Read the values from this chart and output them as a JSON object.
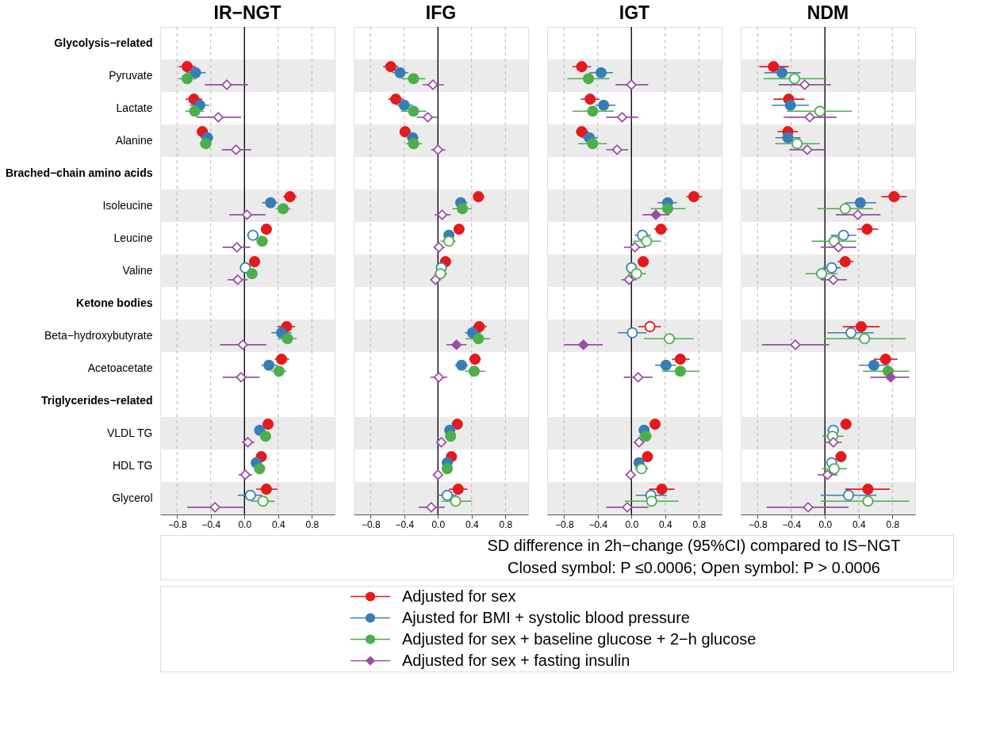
{
  "chart_data": [
    {
      "type": "scatter",
      "title": "IR−NGT",
      "orientation": "horizontal",
      "annotations": [
        "SD difference in 2h−change (95%CI) compared to IS−NGT",
        "Closed symbol: P  ≤0.0006; Open symbol: P > 0.0006"
      ],
      "categories": [
        "Glycolysis−related",
        "Pyruvate",
        "Lactate",
        "Alanine",
        "Brached−chain amino acids",
        "Isoleucine",
        "Leucine",
        "Valine",
        "Ketone bodies",
        "Beta−hydroxybutyrate",
        "Acetoacetate",
        "Triglycerides−related",
        "VLDL TG",
        "HDL TG",
        "Glycerol"
      ],
      "xlim": [
        -1.0,
        1.07
      ],
      "xticks": [
        {
          "value": -0.8,
          "label": "−0.8"
        },
        {
          "value": -0.4,
          "label": "−0.4"
        },
        {
          "value": 0,
          "label": "0.0"
        },
        {
          "value": 0.4,
          "label": "0.4"
        },
        {
          "value": 0.8,
          "label": "0.8"
        }
      ],
      "grid": "x",
      "legend": "bottom",
      "ref_lines": [
        {
          "axis": "x",
          "value": 0,
          "color": "#000000"
        }
      ],
      "bands": [
        {
          "axis": "y",
          "from": "Pyruvate",
          "to": "Pyruvate",
          "color": "#ebebeb"
        },
        {
          "axis": "y",
          "from": "Alanine",
          "to": "Alanine",
          "color": "#ebebeb"
        },
        {
          "axis": "y",
          "from": "Isoleucine",
          "to": "Isoleucine",
          "color": "#ebebeb"
        },
        {
          "axis": "y",
          "from": "Valine",
          "to": "Valine",
          "color": "#ebebeb"
        },
        {
          "axis": "y",
          "from": "Beta−hydroxybutyrate",
          "to": "Beta−hydroxybutyrate",
          "color": "#ebebeb"
        },
        {
          "axis": "y",
          "from": "VLDL TG",
          "to": "VLDL TG",
          "color": "#ebebeb"
        },
        {
          "axis": "y",
          "from": "Glycerol",
          "to": "Glycerol",
          "color": "#ebebeb"
        }
      ],
      "series": [
        {
          "name": "Adjusted for sex",
          "color": "#e41a1c",
          "marker": "circle",
          "values": [
            null,
            -0.68,
            -0.6,
            -0.5,
            null,
            0.54,
            0.26,
            0.12,
            null,
            0.5,
            0.44,
            null,
            0.28,
            0.2,
            0.26
          ],
          "errors": [
            null,
            [
              -0.78,
              -0.58
            ],
            [
              -0.7,
              -0.5
            ],
            [
              -0.56,
              -0.44
            ],
            null,
            [
              0.46,
              0.62
            ],
            [
              0.2,
              0.32
            ],
            [
              0.09,
              0.15
            ],
            null,
            [
              0.39,
              0.6
            ],
            [
              0.36,
              0.53
            ],
            null,
            [
              0.25,
              0.31
            ],
            [
              0.17,
              0.23
            ],
            [
              0.14,
              0.39
            ]
          ],
          "colors": [
            null,
            "#e41a1c",
            "#e41a1c",
            "#e41a1c",
            null,
            "#e41a1c",
            "#e41a1c",
            "#e41a1c",
            null,
            "#e41a1c",
            "#e41a1c",
            null,
            "#e41a1c",
            "#e41a1c",
            "#e41a1c"
          ]
        },
        {
          "name": "Ajusted for BMI + systolic blood pressure",
          "color": "#377eb8",
          "marker": "circle",
          "values": [
            null,
            -0.58,
            -0.53,
            -0.44,
            null,
            0.31,
            0.1,
            0.01,
            null,
            0.44,
            0.29,
            null,
            0.18,
            0.14,
            0.07
          ],
          "errors": [
            null,
            [
              -0.69,
              -0.46
            ],
            [
              -0.65,
              -0.42
            ],
            [
              -0.52,
              -0.37
            ],
            null,
            [
              0.21,
              0.4
            ],
            [
              0.03,
              0.17
            ],
            [
              -0.03,
              0.05
            ],
            null,
            [
              0.32,
              0.56
            ],
            [
              0.2,
              0.39
            ],
            null,
            [
              0.15,
              0.21
            ],
            [
              0.11,
              0.17
            ],
            [
              -0.08,
              0.21
            ]
          ],
          "colors": [
            null,
            "#377eb8",
            "#377eb8",
            "#377eb8",
            null,
            "#377eb8",
            "#ffffff",
            "#ffffff",
            null,
            "#377eb8",
            "#377eb8",
            null,
            "#377eb8",
            "#377eb8",
            "#ffffff"
          ]
        },
        {
          "name": "Adjusted for sex + baseline glucose + 2−h glucose",
          "color": "#4daf4a",
          "marker": "circle",
          "values": [
            null,
            -0.68,
            -0.59,
            -0.46,
            null,
            0.46,
            0.21,
            0.09,
            null,
            0.51,
            0.41,
            null,
            0.25,
            0.18,
            0.22
          ],
          "errors": [
            null,
            [
              -0.78,
              -0.57
            ],
            [
              -0.7,
              -0.48
            ],
            [
              -0.53,
              -0.39
            ],
            null,
            [
              0.37,
              0.55
            ],
            [
              0.14,
              0.28
            ],
            [
              0.05,
              0.12
            ],
            null,
            [
              0.4,
              0.62
            ],
            [
              0.32,
              0.5
            ],
            null,
            [
              0.22,
              0.28
            ],
            [
              0.15,
              0.21
            ],
            [
              0.08,
              0.36
            ]
          ],
          "colors": [
            null,
            "#4daf4a",
            "#4daf4a",
            "#4daf4a",
            null,
            "#4daf4a",
            "#4daf4a",
            "#4daf4a",
            null,
            "#4daf4a",
            "#4daf4a",
            null,
            "#4daf4a",
            "#4daf4a",
            "#ffffff"
          ]
        },
        {
          "name": "Adjusted for sex + fasting insulin",
          "color": "#984ea3",
          "marker": "diamond",
          "values": [
            null,
            -0.21,
            -0.31,
            -0.1,
            null,
            0.03,
            -0.09,
            -0.08,
            null,
            -0.02,
            -0.04,
            null,
            0.04,
            0.01,
            -0.35
          ],
          "errors": [
            null,
            [
              -0.47,
              0.04
            ],
            [
              -0.57,
              -0.04
            ],
            [
              -0.27,
              0.08
            ],
            null,
            [
              -0.18,
              0.25
            ],
            [
              -0.26,
              0.07
            ],
            [
              -0.2,
              0.04
            ],
            null,
            [
              -0.29,
              0.26
            ],
            [
              -0.26,
              0.18
            ],
            null,
            [
              -0.03,
              0.12
            ],
            [
              -0.07,
              0.09
            ],
            [
              -0.68,
              -0.01
            ]
          ],
          "colors": [
            null,
            "#ffffff",
            "#ffffff",
            "#ffffff",
            null,
            "#ffffff",
            "#ffffff",
            "#ffffff",
            null,
            "#ffffff",
            "#ffffff",
            null,
            "#ffffff",
            "#ffffff",
            "#ffffff"
          ]
        }
      ]
    },
    {
      "type": "scatter",
      "title": "IFG",
      "orientation": "horizontal",
      "tick_labels": "x",
      "categories": [
        "Glycolysis−related",
        "Pyruvate",
        "Lactate",
        "Alanine",
        "Brached−chain amino acids",
        "Isoleucine",
        "Leucine",
        "Valine",
        "Ketone bodies",
        "Beta−hydroxybutyrate",
        "Acetoacetate",
        "Triglycerides−related",
        "VLDL TG",
        "HDL TG",
        "Glycerol"
      ],
      "xlim": [
        -1.0,
        1.07
      ],
      "xticks": [
        {
          "value": -0.8,
          "label": "−0.8"
        },
        {
          "value": -0.4,
          "label": "−0.4"
        },
        {
          "value": 0,
          "label": "0.0"
        },
        {
          "value": 0.4,
          "label": "0.4"
        },
        {
          "value": 0.8,
          "label": "0.8"
        }
      ],
      "grid": "x",
      "ref_lines": [
        {
          "axis": "x",
          "value": 0,
          "color": "#000000"
        }
      ],
      "bands": [
        {
          "axis": "y",
          "from": "Pyruvate",
          "to": "Pyruvate",
          "color": "#ebebeb"
        },
        {
          "axis": "y",
          "from": "Alanine",
          "to": "Alanine",
          "color": "#ebebeb"
        },
        {
          "axis": "y",
          "from": "Isoleucine",
          "to": "Isoleucine",
          "color": "#ebebeb"
        },
        {
          "axis": "y",
          "from": "Valine",
          "to": "Valine",
          "color": "#ebebeb"
        },
        {
          "axis": "y",
          "from": "Beta−hydroxybutyrate",
          "to": "Beta−hydroxybutyrate",
          "color": "#ebebeb"
        },
        {
          "axis": "y",
          "from": "VLDL TG",
          "to": "VLDL TG",
          "color": "#ebebeb"
        },
        {
          "axis": "y",
          "from": "Glycerol",
          "to": "Glycerol",
          "color": "#ebebeb"
        }
      ],
      "series": [
        {
          "color": "#e41a1c",
          "marker": "circle",
          "values": [
            null,
            -0.56,
            -0.5,
            -0.39,
            null,
            0.48,
            0.25,
            0.09,
            null,
            0.49,
            0.44,
            null,
            0.23,
            0.16,
            0.24
          ],
          "errors": [
            null,
            [
              -0.65,
              -0.47
            ],
            [
              -0.59,
              -0.41
            ],
            [
              -0.45,
              -0.33
            ],
            null,
            [
              0.43,
              0.55
            ],
            [
              0.2,
              0.3
            ],
            [
              0.06,
              0.12
            ],
            null,
            [
              0.41,
              0.58
            ],
            [
              0.37,
              0.51
            ],
            null,
            [
              0.2,
              0.26
            ],
            [
              0.13,
              0.19
            ],
            [
              0.13,
              0.35
            ]
          ],
          "colors": [
            null,
            "#e41a1c",
            "#e41a1c",
            "#e41a1c",
            null,
            "#e41a1c",
            "#e41a1c",
            "#e41a1c",
            null,
            "#e41a1c",
            "#e41a1c",
            null,
            "#e41a1c",
            "#e41a1c",
            "#e41a1c"
          ]
        },
        {
          "color": "#377eb8",
          "marker": "circle",
          "values": [
            null,
            -0.45,
            -0.4,
            -0.3,
            null,
            0.27,
            0.13,
            0.04,
            null,
            0.41,
            0.28,
            null,
            0.14,
            0.11,
            0.11
          ],
          "errors": [
            null,
            [
              -0.54,
              -0.35
            ],
            [
              -0.49,
              -0.3
            ],
            [
              -0.37,
              -0.23
            ],
            null,
            [
              0.21,
              0.35
            ],
            [
              0.08,
              0.19
            ],
            [
              0.0,
              0.07
            ],
            null,
            [
              0.32,
              0.51
            ],
            [
              0.2,
              0.36
            ],
            null,
            [
              0.11,
              0.17
            ],
            [
              0.08,
              0.14
            ],
            [
              -0.01,
              0.22
            ]
          ],
          "colors": [
            null,
            "#377eb8",
            "#377eb8",
            "#377eb8",
            null,
            "#377eb8",
            "#377eb8",
            "#ffffff",
            null,
            "#377eb8",
            "#377eb8",
            null,
            "#377eb8",
            "#377eb8",
            "#ffffff"
          ]
        },
        {
          "color": "#4daf4a",
          "marker": "circle",
          "values": [
            null,
            -0.29,
            -0.29,
            -0.29,
            null,
            0.29,
            0.13,
            0.03,
            null,
            0.48,
            0.43,
            null,
            0.15,
            0.11,
            0.21
          ],
          "errors": [
            null,
            [
              -0.43,
              -0.15
            ],
            [
              -0.44,
              -0.14
            ],
            [
              -0.38,
              -0.19
            ],
            null,
            [
              0.17,
              0.4
            ],
            [
              0.03,
              0.21
            ],
            [
              -0.04,
              0.11
            ],
            null,
            [
              0.33,
              0.62
            ],
            [
              0.32,
              0.56
            ],
            null,
            [
              0.12,
              0.18
            ],
            [
              0.08,
              0.14
            ],
            [
              0.04,
              0.4
            ]
          ],
          "colors": [
            null,
            "#4daf4a",
            "#4daf4a",
            "#4daf4a",
            null,
            "#4daf4a",
            "#ffffff",
            "#ffffff",
            null,
            "#4daf4a",
            "#4daf4a",
            null,
            "#4daf4a",
            "#4daf4a",
            "#ffffff"
          ]
        },
        {
          "color": "#984ea3",
          "marker": "diamond",
          "values": [
            null,
            -0.06,
            -0.12,
            0.0,
            null,
            0.05,
            0.01,
            -0.03,
            null,
            0.22,
            0.01,
            null,
            0.04,
            0.0,
            -0.08
          ],
          "errors": [
            null,
            [
              -0.18,
              0.07
            ],
            [
              -0.25,
              0.0
            ],
            [
              -0.08,
              0.09
            ],
            null,
            [
              -0.04,
              0.15
            ],
            [
              -0.05,
              0.08
            ],
            [
              -0.09,
              0.03
            ],
            null,
            [
              0.1,
              0.34
            ],
            [
              -0.09,
              0.11
            ],
            null,
            [
              0.0,
              0.08
            ],
            [
              -0.04,
              0.04
            ],
            [
              -0.23,
              0.08
            ]
          ],
          "colors": [
            null,
            "#ffffff",
            "#ffffff",
            "#ffffff",
            null,
            "#ffffff",
            "#ffffff",
            "#ffffff",
            null,
            "#984ea3",
            "#ffffff",
            null,
            "#ffffff",
            "#ffffff",
            "#ffffff"
          ]
        }
      ]
    },
    {
      "type": "scatter",
      "title": "IGT",
      "orientation": "horizontal",
      "tick_labels": "x",
      "categories": [
        "Glycolysis−related",
        "Pyruvate",
        "Lactate",
        "Alanine",
        "Brached−chain amino acids",
        "Isoleucine",
        "Leucine",
        "Valine",
        "Ketone bodies",
        "Beta−hydroxybutyrate",
        "Acetoacetate",
        "Triglycerides−related",
        "VLDL TG",
        "HDL TG",
        "Glycerol"
      ],
      "xlim": [
        -1.0,
        1.07
      ],
      "xticks": [
        {
          "value": -0.8,
          "label": "−0.8"
        },
        {
          "value": -0.4,
          "label": "−0.4"
        },
        {
          "value": 0,
          "label": "0.0"
        },
        {
          "value": 0.4,
          "label": "0.4"
        },
        {
          "value": 0.8,
          "label": "0.8"
        }
      ],
      "grid": "x",
      "ref_lines": [
        {
          "axis": "x",
          "value": 0,
          "color": "#000000"
        }
      ],
      "bands": [
        {
          "axis": "y",
          "from": "Pyruvate",
          "to": "Pyruvate",
          "color": "#ebebeb"
        },
        {
          "axis": "y",
          "from": "Alanine",
          "to": "Alanine",
          "color": "#ebebeb"
        },
        {
          "axis": "y",
          "from": "Isoleucine",
          "to": "Isoleucine",
          "color": "#ebebeb"
        },
        {
          "axis": "y",
          "from": "Valine",
          "to": "Valine",
          "color": "#ebebeb"
        },
        {
          "axis": "y",
          "from": "Beta−hydroxybutyrate",
          "to": "Beta−hydroxybutyrate",
          "color": "#ebebeb"
        },
        {
          "axis": "y",
          "from": "VLDL TG",
          "to": "VLDL TG",
          "color": "#ebebeb"
        },
        {
          "axis": "y",
          "from": "Glycerol",
          "to": "Glycerol",
          "color": "#ebebeb"
        }
      ],
      "series": [
        {
          "color": "#e41a1c",
          "marker": "circle",
          "values": [
            null,
            -0.59,
            -0.49,
            -0.59,
            null,
            0.74,
            0.35,
            0.14,
            null,
            0.22,
            0.58,
            null,
            0.28,
            0.19,
            0.36
          ],
          "errors": [
            null,
            [
              -0.7,
              -0.48
            ],
            [
              -0.6,
              -0.38
            ],
            [
              -0.66,
              -0.51
            ],
            null,
            [
              0.65,
              0.84
            ],
            [
              0.27,
              0.43
            ],
            [
              0.1,
              0.18
            ],
            null,
            [
              0.08,
              0.35
            ],
            [
              0.48,
              0.69
            ],
            null,
            [
              0.25,
              0.31
            ],
            [
              0.16,
              0.22
            ],
            [
              0.21,
              0.51
            ]
          ],
          "colors": [
            null,
            "#e41a1c",
            "#e41a1c",
            "#e41a1c",
            null,
            "#e41a1c",
            "#e41a1c",
            "#e41a1c",
            null,
            "#ffffff",
            "#e41a1c",
            null,
            "#e41a1c",
            "#e41a1c",
            "#e41a1c"
          ]
        },
        {
          "color": "#377eb8",
          "marker": "circle",
          "values": [
            null,
            -0.36,
            -0.33,
            -0.5,
            null,
            0.43,
            0.13,
            0.0,
            null,
            0.01,
            0.41,
            null,
            0.15,
            0.09,
            0.23
          ],
          "errors": [
            null,
            [
              -0.5,
              -0.22
            ],
            [
              -0.43,
              -0.19
            ],
            [
              -0.59,
              -0.4
            ],
            null,
            [
              0.31,
              0.54
            ],
            [
              0.04,
              0.23
            ],
            [
              -0.06,
              0.06
            ],
            null,
            [
              -0.16,
              0.18
            ],
            [
              0.28,
              0.53
            ],
            null,
            [
              0.12,
              0.18
            ],
            [
              0.06,
              0.12
            ],
            [
              0.05,
              0.42
            ]
          ],
          "colors": [
            null,
            "#377eb8",
            "#377eb8",
            "#377eb8",
            null,
            "#377eb8",
            "#ffffff",
            "#ffffff",
            null,
            "#ffffff",
            "#377eb8",
            null,
            "#377eb8",
            "#377eb8",
            "#ffffff"
          ]
        },
        {
          "color": "#4daf4a",
          "marker": "circle",
          "values": [
            null,
            -0.51,
            -0.46,
            -0.46,
            null,
            0.43,
            0.18,
            0.06,
            null,
            0.45,
            0.58,
            null,
            0.17,
            0.12,
            0.24
          ],
          "errors": [
            null,
            [
              -0.76,
              -0.26
            ],
            [
              -0.7,
              -0.21
            ],
            [
              -0.63,
              -0.29
            ],
            null,
            [
              0.23,
              0.64
            ],
            [
              0.02,
              0.35
            ],
            [
              -0.04,
              0.17
            ],
            null,
            [
              0.15,
              0.74
            ],
            [
              0.36,
              0.8
            ],
            null,
            [
              0.09,
              0.24
            ],
            [
              0.04,
              0.2
            ],
            [
              -0.08,
              0.56
            ]
          ],
          "colors": [
            null,
            "#4daf4a",
            "#4daf4a",
            "#4daf4a",
            null,
            "#4daf4a",
            "#ffffff",
            "#ffffff",
            null,
            "#ffffff",
            "#4daf4a",
            null,
            "#4daf4a",
            "#ffffff",
            "#ffffff"
          ]
        },
        {
          "color": "#984ea3",
          "marker": "diamond",
          "values": [
            null,
            0.0,
            -0.11,
            -0.17,
            null,
            0.29,
            0.04,
            -0.03,
            null,
            -0.57,
            0.08,
            null,
            0.09,
            -0.01,
            -0.05
          ],
          "errors": [
            null,
            [
              -0.19,
              0.2
            ],
            [
              -0.3,
              0.08
            ],
            [
              -0.3,
              -0.04
            ],
            null,
            [
              0.13,
              0.45
            ],
            [
              -0.09,
              0.17
            ],
            [
              -0.12,
              0.06
            ],
            null,
            [
              -0.8,
              -0.34
            ],
            [
              -0.09,
              0.25
            ],
            null,
            [
              0.03,
              0.14
            ],
            [
              -0.06,
              0.05
            ],
            [
              -0.3,
              0.2
            ]
          ],
          "colors": [
            null,
            "#ffffff",
            "#ffffff",
            "#ffffff",
            null,
            "#984ea3",
            "#ffffff",
            "#ffffff",
            null,
            "#984ea3",
            "#ffffff",
            null,
            "#ffffff",
            "#ffffff",
            "#ffffff"
          ]
        }
      ]
    },
    {
      "type": "scatter",
      "title": "NDM",
      "orientation": "horizontal",
      "tick_labels": "x",
      "categories": [
        "Glycolysis−related",
        "Pyruvate",
        "Lactate",
        "Alanine",
        "Brached−chain amino acids",
        "Isoleucine",
        "Leucine",
        "Valine",
        "Ketone bodies",
        "Beta−hydroxybutyrate",
        "Acetoacetate",
        "Triglycerides−related",
        "VLDL TG",
        "HDL TG",
        "Glycerol"
      ],
      "xlim": [
        -1.0,
        1.07
      ],
      "xticks": [
        {
          "value": -0.8,
          "label": "−0.8"
        },
        {
          "value": -0.4,
          "label": "−0.4"
        },
        {
          "value": 0,
          "label": "0.0"
        },
        {
          "value": 0.4,
          "label": "0.4"
        },
        {
          "value": 0.8,
          "label": "0.8"
        }
      ],
      "grid": "x",
      "ref_lines": [
        {
          "axis": "x",
          "value": 0,
          "color": "#000000"
        }
      ],
      "bands": [
        {
          "axis": "y",
          "from": "Pyruvate",
          "to": "Pyruvate",
          "color": "#ebebeb"
        },
        {
          "axis": "y",
          "from": "Alanine",
          "to": "Alanine",
          "color": "#ebebeb"
        },
        {
          "axis": "y",
          "from": "Isoleucine",
          "to": "Isoleucine",
          "color": "#ebebeb"
        },
        {
          "axis": "y",
          "from": "Valine",
          "to": "Valine",
          "color": "#ebebeb"
        },
        {
          "axis": "y",
          "from": "Beta−hydroxybutyrate",
          "to": "Beta−hydroxybutyrate",
          "color": "#ebebeb"
        },
        {
          "axis": "y",
          "from": "VLDL TG",
          "to": "VLDL TG",
          "color": "#ebebeb"
        },
        {
          "axis": "y",
          "from": "Glycerol",
          "to": "Glycerol",
          "color": "#ebebeb"
        }
      ],
      "series": [
        {
          "color": "#e41a1c",
          "marker": "circle",
          "values": [
            null,
            -0.61,
            -0.43,
            -0.44,
            null,
            0.82,
            0.5,
            0.24,
            null,
            0.43,
            0.72,
            null,
            0.25,
            0.19,
            0.51
          ],
          "errors": [
            null,
            [
              -0.78,
              -0.43
            ],
            [
              -0.61,
              -0.24
            ],
            [
              -0.56,
              -0.32
            ],
            null,
            [
              0.67,
              0.97
            ],
            [
              0.38,
              0.63
            ],
            [
              0.15,
              0.34
            ],
            null,
            [
              0.21,
              0.65
            ],
            [
              0.58,
              0.86
            ],
            null,
            [
              0.2,
              0.3
            ],
            [
              0.14,
              0.23
            ],
            [
              0.24,
              0.77
            ]
          ],
          "colors": [
            null,
            "#e41a1c",
            "#e41a1c",
            "#e41a1c",
            null,
            "#e41a1c",
            "#e41a1c",
            "#e41a1c",
            null,
            "#e41a1c",
            "#e41a1c",
            null,
            "#e41a1c",
            "#e41a1c",
            "#e41a1c"
          ]
        },
        {
          "color": "#377eb8",
          "marker": "circle",
          "values": [
            null,
            -0.51,
            -0.41,
            -0.44,
            null,
            0.42,
            0.22,
            0.08,
            null,
            0.31,
            0.58,
            null,
            0.1,
            0.08,
            0.28
          ],
          "errors": [
            null,
            [
              -0.72,
              -0.29
            ],
            [
              -0.63,
              -0.19
            ],
            [
              -0.59,
              -0.29
            ],
            null,
            [
              0.24,
              0.61
            ],
            [
              0.07,
              0.37
            ],
            [
              -0.03,
              0.19
            ],
            null,
            [
              0.03,
              0.58
            ],
            [
              0.41,
              0.76
            ],
            null,
            [
              0.03,
              0.16
            ],
            [
              0.02,
              0.14
            ],
            [
              -0.05,
              0.61
            ]
          ],
          "colors": [
            null,
            "#377eb8",
            "#377eb8",
            "#377eb8",
            null,
            "#377eb8",
            "#ffffff",
            "#ffffff",
            null,
            "#ffffff",
            "#377eb8",
            null,
            "#ffffff",
            "#ffffff",
            "#ffffff"
          ]
        },
        {
          "color": "#4daf4a",
          "marker": "circle",
          "values": [
            null,
            -0.36,
            -0.06,
            -0.33,
            null,
            0.24,
            0.11,
            -0.04,
            null,
            0.47,
            0.75,
            null,
            0.09,
            0.11,
            0.51
          ],
          "errors": [
            null,
            [
              -0.73,
              0.02
            ],
            [
              -0.45,
              0.32
            ],
            [
              -0.59,
              -0.06
            ],
            null,
            [
              -0.09,
              0.57
            ],
            [
              -0.16,
              0.37
            ],
            [
              -0.23,
              0.15
            ],
            null,
            [
              -0.01,
              0.96
            ],
            [
              0.45,
              1.0
            ],
            null,
            [
              -0.03,
              0.22
            ],
            [
              -0.03,
              0.26
            ],
            [
              -0.05,
              1.0
            ]
          ],
          "colors": [
            null,
            "#ffffff",
            "#ffffff",
            "#ffffff",
            null,
            "#ffffff",
            "#ffffff",
            "#ffffff",
            null,
            "#ffffff",
            "#4daf4a",
            null,
            "#ffffff",
            "#ffffff",
            "#ffffff"
          ]
        },
        {
          "color": "#984ea3",
          "marker": "diamond",
          "values": [
            null,
            -0.24,
            -0.18,
            -0.21,
            null,
            0.39,
            0.16,
            0.1,
            null,
            -0.35,
            0.78,
            null,
            0.1,
            0.03,
            -0.2
          ],
          "errors": [
            null,
            [
              -0.55,
              0.07
            ],
            [
              -0.49,
              0.14
            ],
            [
              -0.42,
              0.0
            ],
            null,
            [
              0.13,
              0.66
            ],
            [
              -0.05,
              0.37
            ],
            [
              -0.05,
              0.26
            ],
            null,
            [
              -0.75,
              0.05
            ],
            [
              0.54,
              1.0
            ],
            null,
            [
              0.0,
              0.2
            ],
            [
              -0.09,
              0.15
            ],
            [
              -0.69,
              0.28
            ]
          ],
          "colors": [
            null,
            "#ffffff",
            "#ffffff",
            "#ffffff",
            null,
            "#ffffff",
            "#ffffff",
            "#ffffff",
            null,
            "#ffffff",
            "#984ea3",
            null,
            "#ffffff",
            "#ffffff",
            "#ffffff"
          ]
        }
      ]
    }
  ]
}
